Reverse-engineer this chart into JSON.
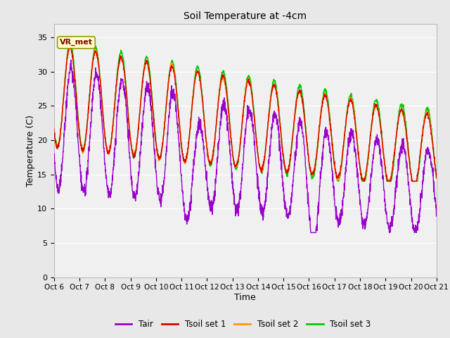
{
  "title": "Soil Temperature at -4cm",
  "xlabel": "Time",
  "ylabel": "Temperature (C)",
  "ylim": [
    0,
    37
  ],
  "yticks": [
    0,
    5,
    10,
    15,
    20,
    25,
    30,
    35
  ],
  "date_labels": [
    "Oct 6",
    "Oct 7",
    "Oct 8",
    "Oct 9",
    "Oct 10",
    "Oct 11",
    "Oct 12",
    "Oct 13",
    "Oct 14",
    "Oct 15",
    "Oct 16",
    "Oct 17",
    "Oct 18",
    "Oct 19",
    "Oct 20",
    "Oct 21"
  ],
  "colors": {
    "Tair": "#9900cc",
    "Tsoil1": "#dd0000",
    "Tsoil2": "#ff9900",
    "Tsoil3": "#00cc00"
  },
  "fig_facecolor": "#e8e8e8",
  "axes_facecolor": "#f0f0f0",
  "grid_color": "#ffffff",
  "vr_met_label": "VR_met",
  "legend_entries": [
    "Tair",
    "Tsoil set 1",
    "Tsoil set 2",
    "Tsoil set 3"
  ],
  "n_days": 15,
  "points_per_day": 144
}
